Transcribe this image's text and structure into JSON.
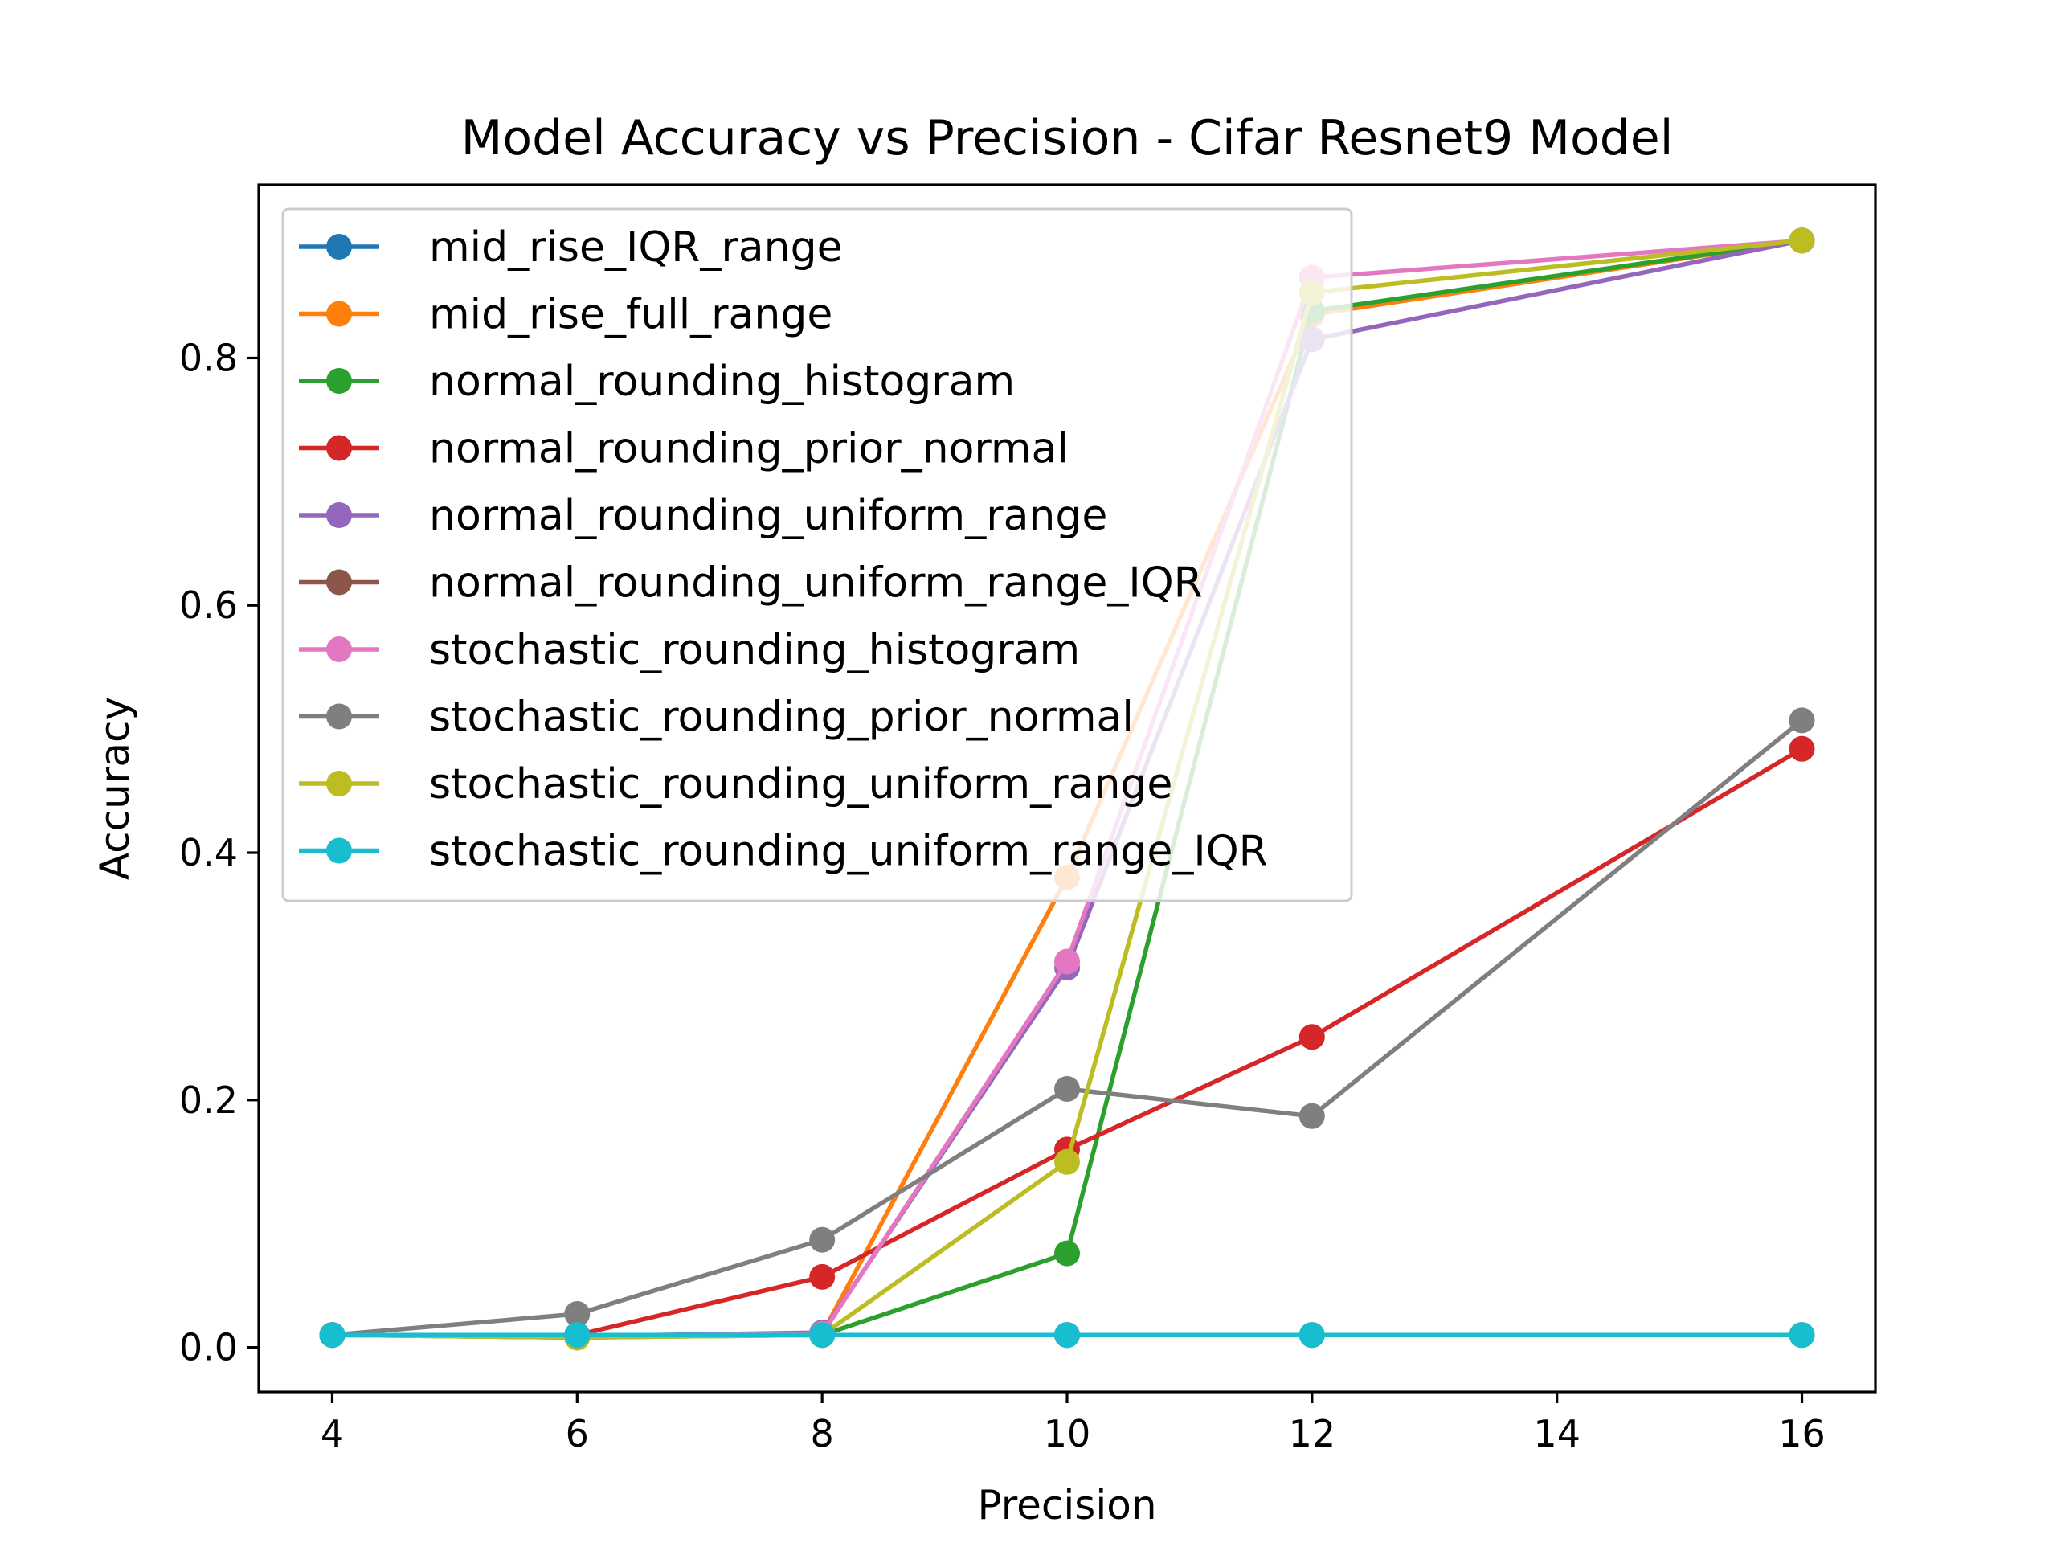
{
  "chart_data": {
    "type": "line",
    "title": "Model Accuracy vs Precision - Cifar Resnet9 Model",
    "xlabel": "Precision",
    "ylabel": "Accuracy",
    "xlim": [
      3.4,
      16.6
    ],
    "ylim": [
      -0.036,
      0.94
    ],
    "xticks": [
      4,
      6,
      8,
      10,
      12,
      14,
      16
    ],
    "yticks": [
      0.0,
      0.2,
      0.4,
      0.6,
      0.8
    ],
    "ytick_labels": [
      "0.0",
      "0.2",
      "0.4",
      "0.6",
      "0.8"
    ],
    "x": [
      4,
      6,
      8,
      10,
      12,
      16
    ],
    "grid": false,
    "legend_position": "upper-left",
    "series": [
      {
        "name": "mid_rise_IQR_range",
        "color": "#1f77b4",
        "values": [
          0.01,
          0.01,
          0.01,
          0.01,
          0.01,
          0.01
        ]
      },
      {
        "name": "mid_rise_full_range",
        "color": "#ff7f0e",
        "values": [
          0.01,
          0.008,
          0.011,
          0.38,
          0.835,
          0.895
        ]
      },
      {
        "name": "normal_rounding_histogram",
        "color": "#2ca02c",
        "values": [
          0.01,
          0.008,
          0.01,
          0.076,
          0.838,
          0.895
        ]
      },
      {
        "name": "normal_rounding_prior_normal",
        "color": "#d62728",
        "values": [
          0.01,
          0.01,
          0.057,
          0.16,
          0.251,
          0.484
        ]
      },
      {
        "name": "normal_rounding_uniform_range",
        "color": "#9467bd",
        "values": [
          0.01,
          0.009,
          0.012,
          0.307,
          0.815,
          0.895
        ]
      },
      {
        "name": "normal_rounding_uniform_range_IQR",
        "color": "#8c564b",
        "values": [
          0.01,
          0.01,
          0.01,
          0.01,
          0.01,
          0.01
        ]
      },
      {
        "name": "stochastic_rounding_histogram",
        "color": "#e377c2",
        "values": [
          0.01,
          0.009,
          0.011,
          0.312,
          0.865,
          0.895
        ]
      },
      {
        "name": "stochastic_rounding_prior_normal",
        "color": "#7f7f7f",
        "values": [
          0.01,
          0.027,
          0.087,
          0.209,
          0.187,
          0.507
        ]
      },
      {
        "name": "stochastic_rounding_uniform_range",
        "color": "#bcbd22",
        "values": [
          0.01,
          0.008,
          0.01,
          0.15,
          0.853,
          0.895
        ]
      },
      {
        "name": "stochastic_rounding_uniform_range_IQR",
        "color": "#17becf",
        "values": [
          0.01,
          0.01,
          0.01,
          0.01,
          0.01,
          0.01
        ]
      }
    ]
  }
}
